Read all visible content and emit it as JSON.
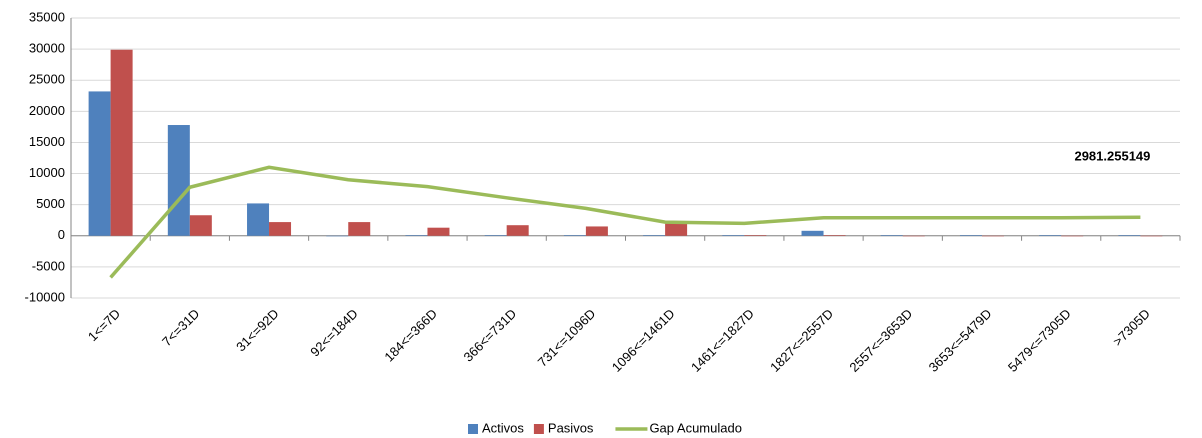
{
  "chart_data": {
    "type": "bar",
    "categories": [
      "1<=7D",
      "7<=31D",
      "31<=92D",
      "92<=184D",
      "184<=366D",
      "366<=731D",
      "731<=1096D",
      "1096<=1461D",
      "1461<=1827D",
      "1827<=2557D",
      "2557<=3653D",
      "3653<=5479D",
      "5479<=7305D",
      ">7305D"
    ],
    "series": [
      {
        "name": "Activos",
        "type": "bar",
        "color": "#4f81bd",
        "values": [
          23200,
          17800,
          5200,
          0,
          100,
          100,
          100,
          100,
          100,
          800,
          100,
          100,
          100,
          100
        ]
      },
      {
        "name": "Pasivos",
        "type": "bar",
        "color": "#c0504d",
        "values": [
          29900,
          3300,
          2200,
          2200,
          1300,
          1700,
          1500,
          2000,
          100,
          100,
          0,
          0,
          0,
          0
        ]
      },
      {
        "name": "Gap Acumulado",
        "type": "line",
        "color": "#9bbb59",
        "values": [
          -6700,
          7800,
          11000,
          9000,
          7900,
          6100,
          4400,
          2200,
          2000,
          2900,
          2900,
          2900,
          2900,
          2981.255149
        ]
      }
    ],
    "ylim": [
      -10000,
      35000
    ],
    "yticks": [
      -10000,
      -5000,
      0,
      5000,
      10000,
      15000,
      20000,
      25000,
      30000,
      35000
    ],
    "grid": true,
    "legend": "bottom"
  }
}
